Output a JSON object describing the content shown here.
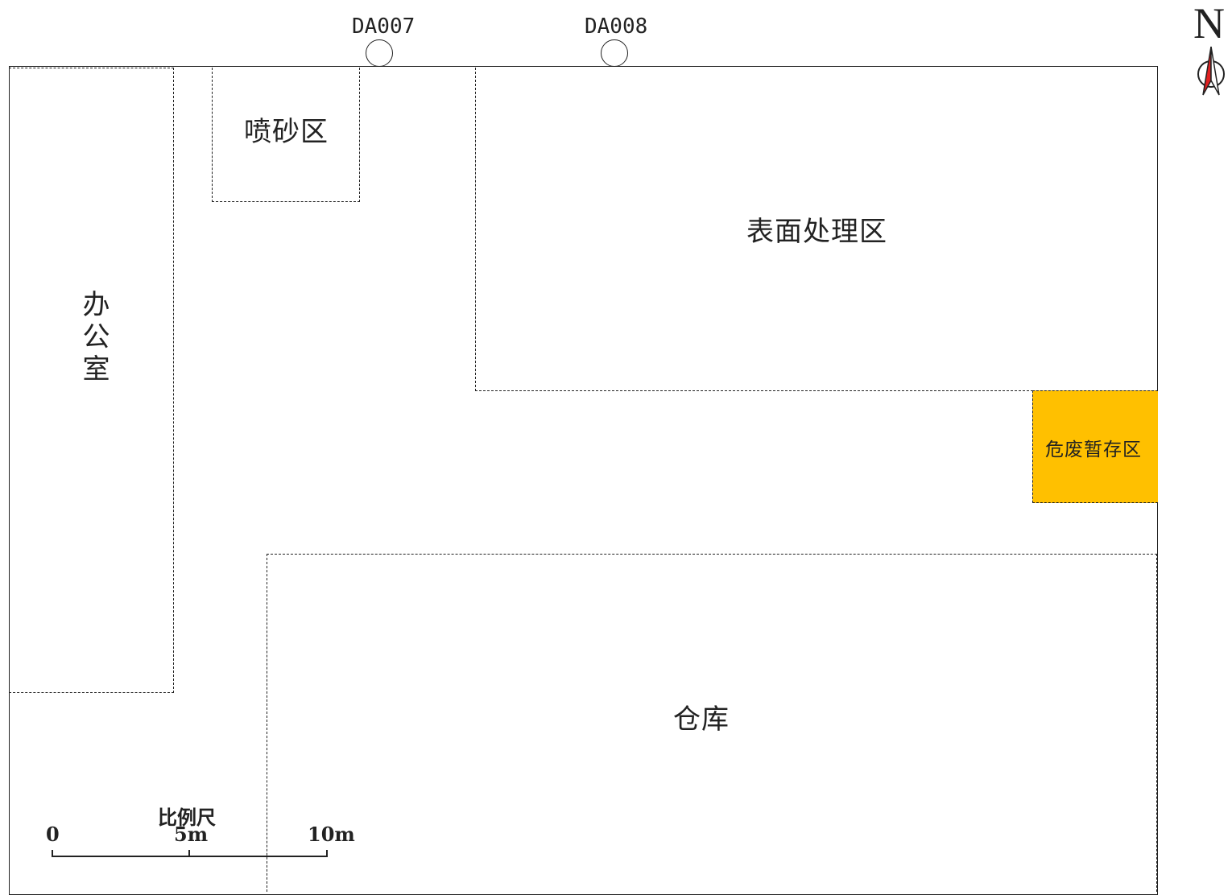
{
  "colors": {
    "hazard_fill": "#FFC000",
    "line": "#222222"
  },
  "outlets": [
    {
      "id": "DA007"
    },
    {
      "id": "DA008"
    }
  ],
  "zones": {
    "office": "办公室",
    "sandblast": "喷砂区",
    "surface": "表面处理区",
    "hazard": "危废暂存区",
    "warehouse": "仓库"
  },
  "scale_bar": {
    "title": "比例尺",
    "ticks": [
      "0",
      "5m",
      "10m"
    ]
  },
  "north_arrow": {
    "label": "N"
  }
}
